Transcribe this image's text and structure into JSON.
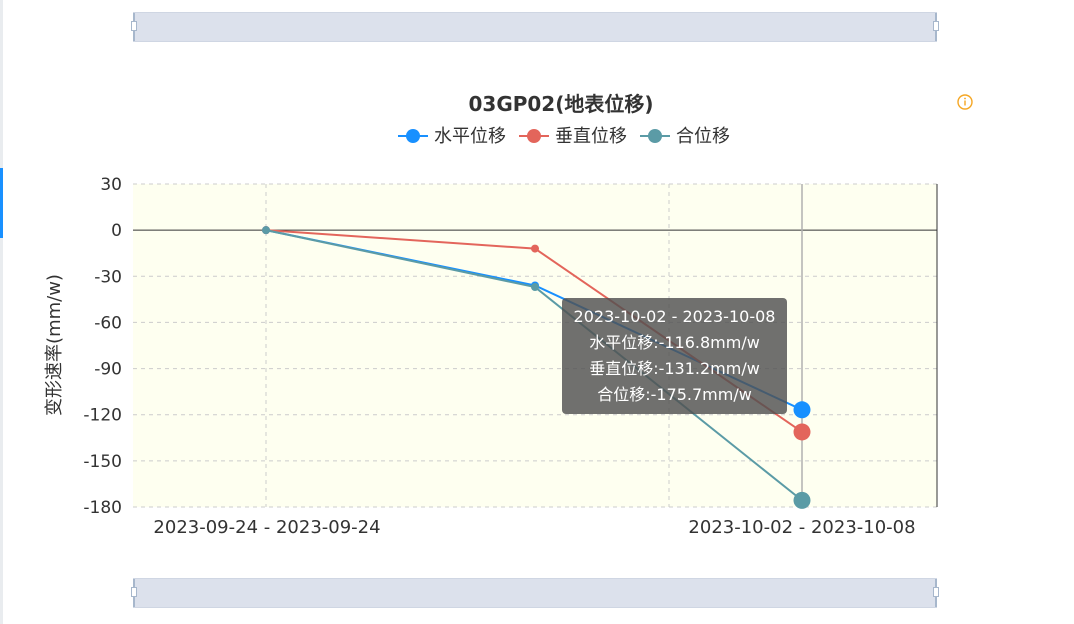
{
  "chart_data": {
    "type": "line",
    "title": "03GP02(地表位移)",
    "ylabel": "变形速率(mm/w)",
    "xlabel": "",
    "categories": [
      "2023-09-24 - 2023-09-24",
      "",
      "2023-10-02 - 2023-10-08"
    ],
    "x_tick_labels": [
      "2023-09-24 - 2023-09-24",
      "2023-10-02 - 2023-10-08"
    ],
    "ylim": [
      -180,
      30
    ],
    "yticks": [
      "30",
      "0",
      "-30",
      "-60",
      "-90",
      "-120",
      "-150",
      "-180"
    ],
    "grid": true,
    "legend_position": "top",
    "series": [
      {
        "name": "水平位移",
        "color": "#1890ff",
        "values": [
          0,
          -36,
          -116.8
        ]
      },
      {
        "name": "垂直位移",
        "color": "#e3655b",
        "values": [
          0,
          -12,
          -131.2
        ]
      },
      {
        "name": "合位移",
        "color": "#5b9ba6",
        "values": [
          0,
          -37,
          -175.7
        ]
      }
    ],
    "tooltip": {
      "header": "2023-10-02 - 2023-10-08",
      "lines": [
        "水平位移:-116.8mm/w",
        "垂直位移:-131.2mm/w",
        "合位移:-175.7mm/w"
      ]
    },
    "plot_background": "#fefff0"
  },
  "icons": {
    "info": "info-circle-icon",
    "info_color": "#f5a623"
  }
}
